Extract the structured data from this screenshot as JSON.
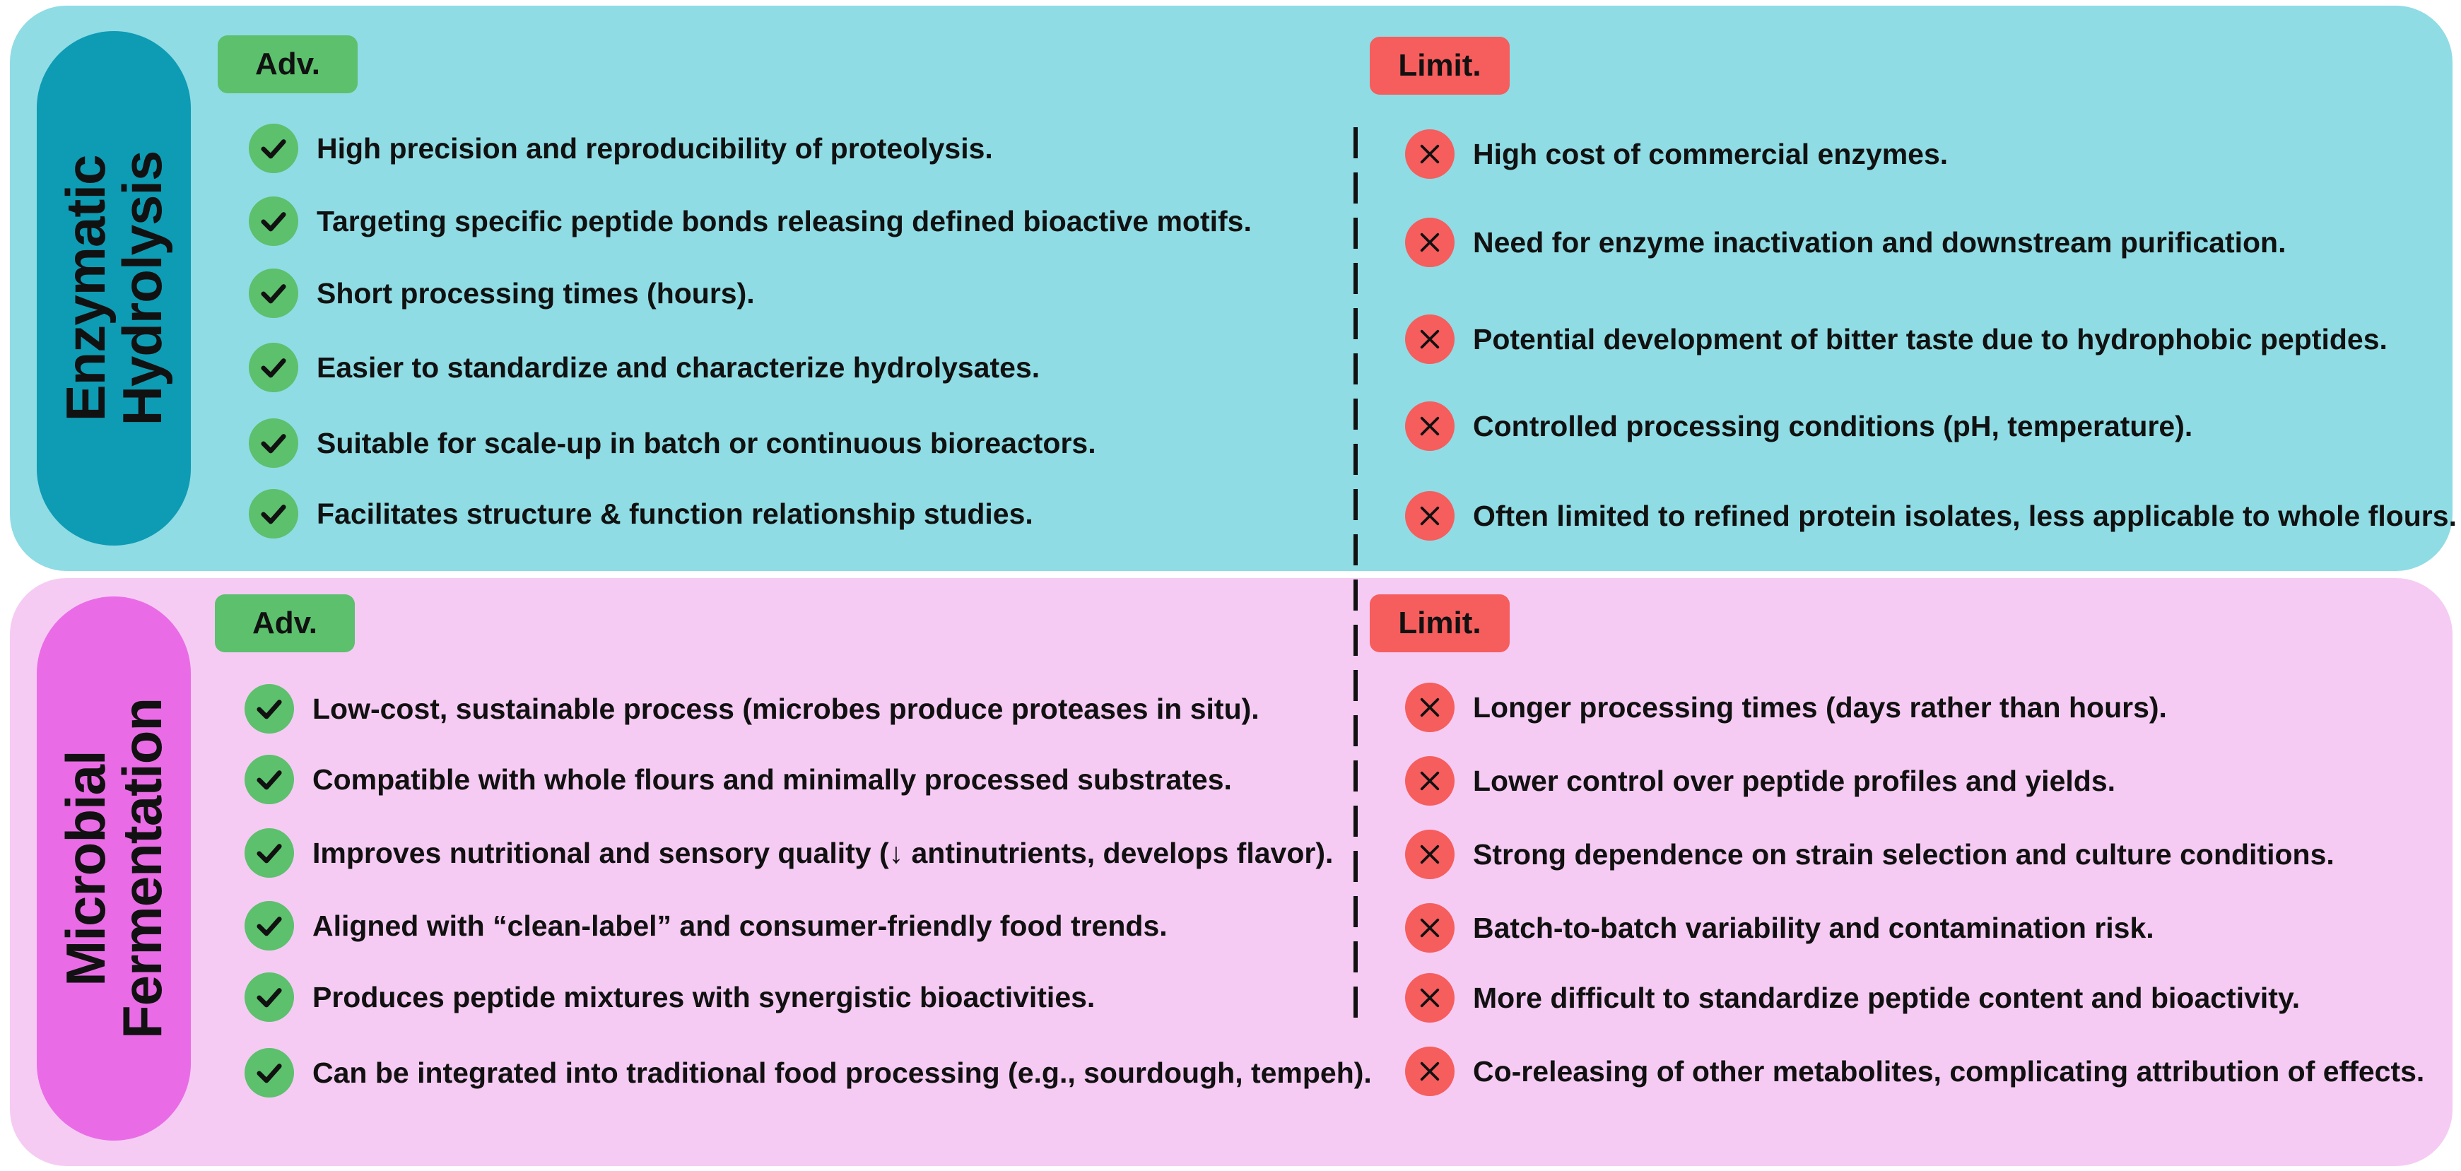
{
  "tags": {
    "adv": "Adv.",
    "limit": "Limit."
  },
  "colors": {
    "top_panel": "#8fdce4",
    "bottom_panel": "#f5cbf3",
    "top_pill": "#0e9bb4",
    "bottom_pill": "#e96ce6",
    "adv_green": "#5cc06d",
    "limit_red": "#f65d5d"
  },
  "icons": {
    "advantage": "check-icon",
    "limitation": "cross-icon"
  },
  "enzymatic": {
    "title_line1": "Enzymatic",
    "title_line2": "Hydrolysis",
    "advantages": [
      "High precision and reproducibility of proteolysis.",
      "Targeting specific peptide bonds releasing defined bioactive motifs.",
      "Short processing times (hours).",
      "Easier to standardize and characterize hydrolysates.",
      "Suitable for scale-up in batch or continuous bioreactors.",
      "Facilitates structure & function relationship studies."
    ],
    "limitations": [
      "High cost of commercial enzymes.",
      "Need for enzyme inactivation and downstream purification.",
      "Potential development of bitter taste due to hydrophobic peptides.",
      "Controlled processing conditions (pH, temperature).",
      "Often limited to refined protein isolates, less applicable to whole flours."
    ]
  },
  "fermentation": {
    "title_line1": "Microbial",
    "title_line2": "Fermentation",
    "advantages": [
      "Low-cost, sustainable process (microbes produce proteases in situ).",
      "Compatible with whole flours and minimally processed substrates.",
      "Improves nutritional and sensory quality (↓ antinutrients, develops flavor).",
      "Aligned with “clean-label” and consumer-friendly food trends.",
      "Produces peptide mixtures with synergistic bioactivities.",
      "Can be integrated into traditional food processing (e.g., sourdough, tempeh)."
    ],
    "limitations": [
      "Longer processing times (days rather than hours).",
      "Lower control over peptide profiles and yields.",
      "Strong dependence on strain selection and culture conditions.",
      "Batch-to-batch variability and contamination risk.",
      "More difficult to standardize peptide content and bioactivity.",
      "Co-releasing of other metabolites, complicating attribution of effects."
    ]
  }
}
